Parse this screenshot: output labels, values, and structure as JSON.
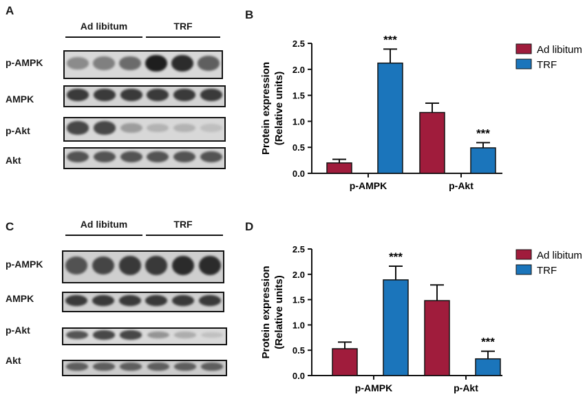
{
  "figure": {
    "panels": [
      {
        "letter": "A",
        "groups": [
          "Ad libitum",
          "TRF"
        ],
        "blots": [
          {
            "label": "p-AMPK",
            "intensities": [
              0.55,
              0.6,
              0.7,
              1.0,
              0.95,
              0.75
            ]
          },
          {
            "label": "AMPK",
            "intensities": [
              0.9,
              0.9,
              0.9,
              0.9,
              0.9,
              0.9
            ]
          },
          {
            "label": "p-Akt",
            "intensities": [
              0.85,
              0.85,
              0.45,
              0.3,
              0.3,
              0.2
            ]
          },
          {
            "label": "Akt",
            "intensities": [
              0.8,
              0.8,
              0.8,
              0.8,
              0.8,
              0.8
            ]
          }
        ]
      },
      {
        "letter": "C",
        "groups": [
          "Ad libitum",
          "TRF"
        ],
        "blots": [
          {
            "label": "p-AMPK",
            "intensities": [
              0.8,
              0.85,
              0.9,
              0.9,
              0.95,
              0.95
            ]
          },
          {
            "label": "AMPK",
            "intensities": [
              0.9,
              0.9,
              0.9,
              0.9,
              0.9,
              0.9
            ]
          },
          {
            "label": "p-Akt",
            "intensities": [
              0.8,
              0.85,
              0.85,
              0.5,
              0.35,
              0.2
            ]
          },
          {
            "label": "Akt",
            "intensities": [
              0.75,
              0.75,
              0.75,
              0.75,
              0.75,
              0.75
            ]
          }
        ]
      }
    ]
  },
  "chart_data": [
    {
      "panel": "B",
      "type": "bar",
      "ylabel": "Protein expression",
      "ylabel2": "(Relative units)",
      "categories": [
        "p-AMPK",
        "p-Akt"
      ],
      "series": [
        {
          "name": "Ad libitum",
          "color": "#a01c3c",
          "values": [
            0.2,
            1.17
          ],
          "errors": [
            0.07,
            0.18
          ],
          "significance": [
            "",
            ""
          ]
        },
        {
          "name": "TRF",
          "color": "#1b75bb",
          "values": [
            2.12,
            0.49
          ],
          "errors": [
            0.27,
            0.1
          ],
          "significance": [
            "***",
            "***"
          ]
        }
      ],
      "ylim": [
        0,
        2.5
      ],
      "yticks": [
        "0.0",
        "0.5",
        "1.0",
        "1.5",
        "2.0",
        "2.5"
      ],
      "legend": "top-right",
      "grid": false
    },
    {
      "panel": "D",
      "type": "bar",
      "ylabel": "Protein expression",
      "ylabel2": "(Relative units)",
      "categories": [
        "p-AMPK",
        "p-Akt"
      ],
      "series": [
        {
          "name": "Ad libitum",
          "color": "#a01c3c",
          "values": [
            0.53,
            1.48
          ],
          "errors": [
            0.13,
            0.31
          ],
          "significance": [
            "",
            ""
          ]
        },
        {
          "name": "TRF",
          "color": "#1b75bb",
          "values": [
            1.89,
            0.33
          ],
          "errors": [
            0.27,
            0.15
          ],
          "significance": [
            "***",
            "***"
          ]
        }
      ],
      "ylim": [
        0,
        2.5
      ],
      "yticks": [
        "0.0",
        "0.5",
        "1.0",
        "1.5",
        "2.0",
        "2.5"
      ],
      "legend": "top-right",
      "grid": false
    }
  ]
}
